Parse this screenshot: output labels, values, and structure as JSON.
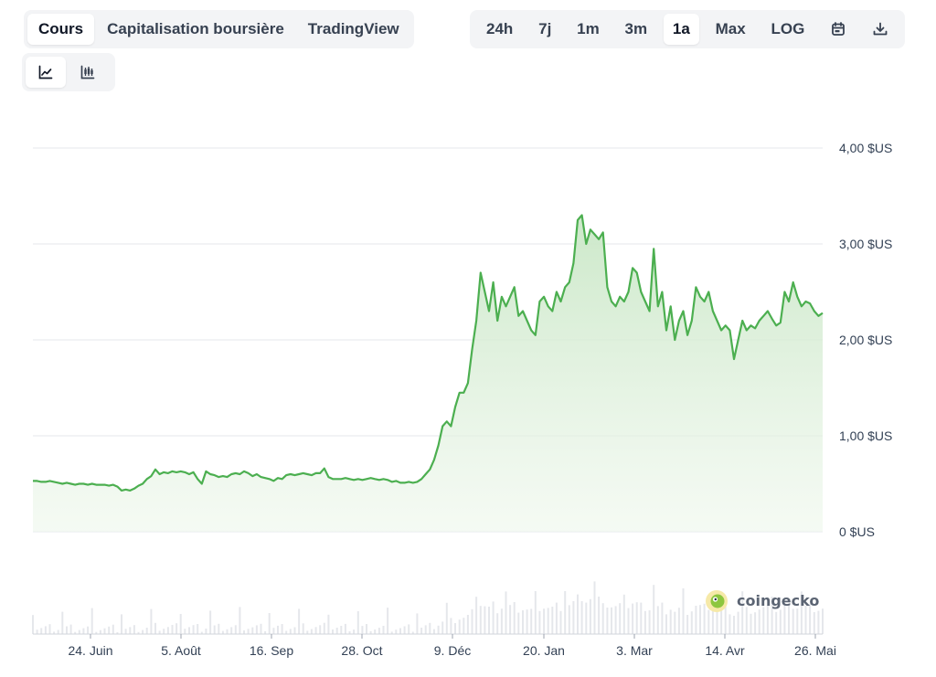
{
  "view_tabs": [
    {
      "label": "Cours",
      "active": true
    },
    {
      "label": "Capitalisation boursière",
      "active": false
    },
    {
      "label": "TradingView",
      "active": false
    }
  ],
  "range_tabs": [
    {
      "label": "24h",
      "active": false
    },
    {
      "label": "7j",
      "active": false
    },
    {
      "label": "1m",
      "active": false
    },
    {
      "label": "3m",
      "active": false
    },
    {
      "label": "1a",
      "active": true
    },
    {
      "label": "Max",
      "active": false
    },
    {
      "label": "LOG",
      "active": false
    }
  ],
  "icons": {
    "calendar": "calendar-icon",
    "download": "download-icon",
    "line_chart": "line-chart-icon",
    "candlestick": "candlestick-icon",
    "watermark": "coingecko-logo-icon"
  },
  "watermark_text": "coingecko",
  "colors": {
    "line": "#4caf50",
    "fill": "#dcefd9",
    "grid": "#e5e7eb",
    "volume": "#e5e7eb"
  },
  "chart_data": {
    "type": "area",
    "title": "",
    "xlabel": "",
    "ylabel": "",
    "ylim": [
      0,
      4
    ],
    "y_ticks": [
      {
        "value": 0,
        "label": "0 $US"
      },
      {
        "value": 1,
        "label": "1,00 $US"
      },
      {
        "value": 2,
        "label": "2,00 $US"
      },
      {
        "value": 3,
        "label": "3,00 $US"
      },
      {
        "value": 4,
        "label": "4,00 $US"
      }
    ],
    "x_ticks": [
      "24. Juin",
      "5. Août",
      "16. Sep",
      "28. Oct",
      "9. Déc",
      "20. Jan",
      "3. Mar",
      "14. Avr",
      "26. Mai"
    ],
    "grid": true,
    "series": [
      {
        "values": [
          0.53,
          0.53,
          0.52,
          0.52,
          0.53,
          0.52,
          0.51,
          0.5,
          0.51,
          0.5,
          0.49,
          0.5,
          0.5,
          0.49,
          0.5,
          0.49,
          0.49,
          0.49,
          0.48,
          0.49,
          0.47,
          0.43,
          0.44,
          0.43,
          0.45,
          0.48,
          0.5,
          0.55,
          0.58,
          0.65,
          0.6,
          0.62,
          0.61,
          0.63,
          0.62,
          0.63,
          0.62,
          0.6,
          0.62,
          0.55,
          0.5,
          0.63,
          0.6,
          0.59,
          0.57,
          0.58,
          0.57,
          0.6,
          0.61,
          0.6,
          0.63,
          0.61,
          0.58,
          0.6,
          0.57,
          0.56,
          0.55,
          0.53,
          0.56,
          0.55,
          0.59,
          0.6,
          0.59,
          0.6,
          0.61,
          0.6,
          0.59,
          0.61,
          0.61,
          0.66,
          0.57,
          0.55,
          0.55,
          0.55,
          0.56,
          0.55,
          0.54,
          0.55,
          0.54,
          0.55,
          0.56,
          0.55,
          0.54,
          0.55,
          0.54,
          0.52,
          0.53,
          0.51,
          0.51,
          0.52,
          0.51,
          0.52,
          0.55,
          0.6,
          0.65,
          0.75,
          0.9,
          1.1,
          1.15,
          1.1,
          1.3,
          1.45,
          1.45,
          1.55,
          1.9,
          2.2,
          2.7,
          2.5,
          2.3,
          2.6,
          2.2,
          2.45,
          2.35,
          2.45,
          2.55,
          2.25,
          2.3,
          2.2,
          2.1,
          2.05,
          2.4,
          2.45,
          2.35,
          2.3,
          2.5,
          2.4,
          2.55,
          2.6,
          2.8,
          3.25,
          3.3,
          3.0,
          3.15,
          3.1,
          3.05,
          3.12,
          2.55,
          2.4,
          2.35,
          2.45,
          2.4,
          2.5,
          2.75,
          2.7,
          2.5,
          2.4,
          2.3,
          2.95,
          2.35,
          2.5,
          2.1,
          2.35,
          2.0,
          2.2,
          2.3,
          2.05,
          2.2,
          2.55,
          2.45,
          2.4,
          2.5,
          2.3,
          2.2,
          2.1,
          2.15,
          2.1,
          1.8,
          2.0,
          2.2,
          2.1,
          2.15,
          2.12,
          2.2,
          2.25,
          2.3,
          2.22,
          2.15,
          2.18,
          2.5,
          2.4,
          2.6,
          2.45,
          2.35,
          2.4,
          2.38,
          2.3,
          2.25,
          2.28
        ]
      }
    ]
  }
}
